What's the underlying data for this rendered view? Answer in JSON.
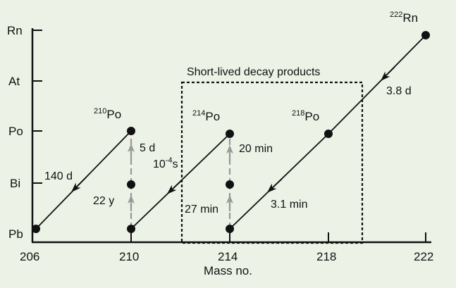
{
  "diagram": {
    "background": "#edf2e6",
    "x_label": "Mass no.",
    "x_ticks": [
      "206",
      "210",
      "214",
      "218",
      "222"
    ],
    "y_ticks": [
      "Rn",
      "At",
      "Po",
      "Bi",
      "Pb"
    ],
    "box_label": "Short-lived decay products",
    "nuclides": [
      {
        "mass": "222",
        "element": "Rn"
      },
      {
        "mass": "218",
        "element": "Po"
      },
      {
        "mass": "214",
        "element": "Po"
      },
      {
        "mass": "210",
        "element": "Po"
      }
    ],
    "half_lives": {
      "rn222": "3.8 d",
      "po218": "3.1 min",
      "pb214": "27 min",
      "bi214": "20 min",
      "po214_base": "10",
      "po214_exp": "-4",
      "po214_unit": "s",
      "pb210": "22 y",
      "bi210": "5 d",
      "po210": "140 d"
    },
    "colors": {
      "alpha_line": "#111111",
      "beta_line": "#999999",
      "node": "#111111"
    }
  }
}
